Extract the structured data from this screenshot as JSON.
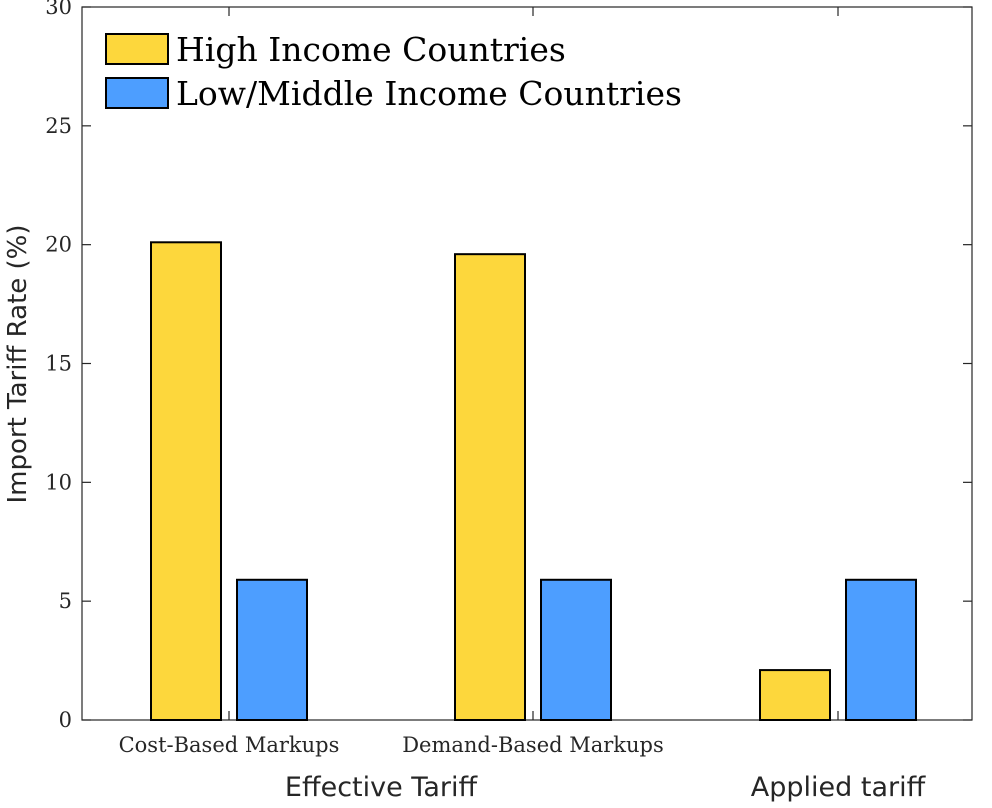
{
  "chart_data": {
    "type": "bar",
    "categories": [
      "Cost-Based Markups",
      "Demand-Based Markups",
      ""
    ],
    "group_labels": [
      "Effective Tariff",
      "Applied tariff"
    ],
    "series": [
      {
        "name": "High Income Countries",
        "values": [
          20.1,
          19.6,
          2.1
        ],
        "color": "#FDD73C"
      },
      {
        "name": "Low/Middle Income Countries",
        "values": [
          5.9,
          5.9,
          5.9
        ],
        "color": "#4D9EFF"
      }
    ],
    "title": "",
    "xlabel": "",
    "ylabel": "Import Tariff Rate (%)",
    "ylim": [
      0,
      30
    ],
    "yticks": [
      0,
      5,
      10,
      15,
      20,
      25,
      30
    ],
    "grid": false,
    "legend_position": "top-left"
  }
}
